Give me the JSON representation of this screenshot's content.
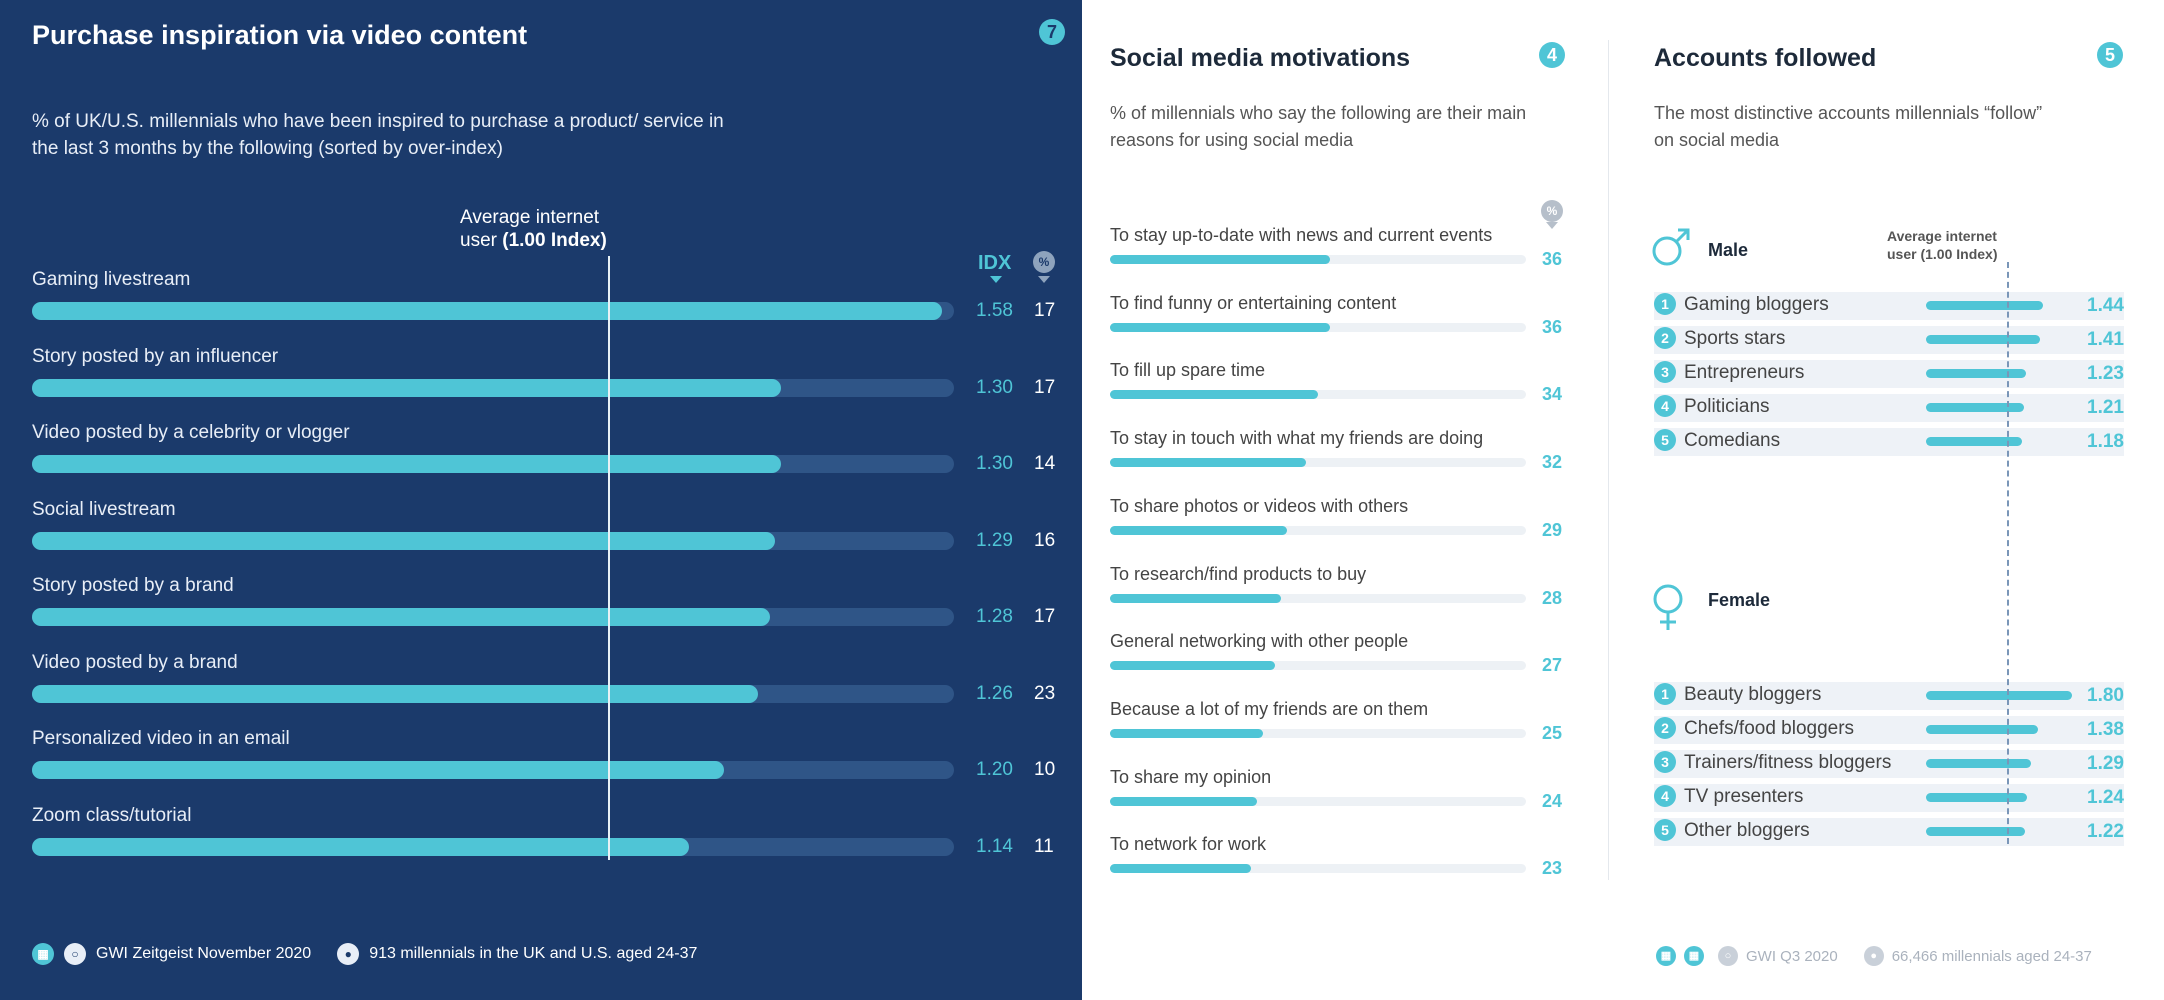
{
  "left": {
    "badge": "7",
    "title": "Purchase inspiration via video content",
    "subtitle": "% of UK/U.S. millennials who have been inspired to purchase a product/ service in the last 3 months by the following (sorted by over-index)",
    "avg_label_line1": "Average internet",
    "avg_label_line2_prefix": "user ",
    "avg_label_line2_bold": "(1.00 Index)",
    "idx_header": "IDX",
    "pct_header": "%",
    "footer": {
      "source": "GWI Zeitgeist November 2020",
      "sample": "913 millennials in the UK and U.S. aged 24-37"
    }
  },
  "middle": {
    "badge": "4",
    "title": "Social media motivations",
    "subtitle": "% of millennials who say the following are their main reasons for using social media",
    "pct_header": "%"
  },
  "right": {
    "badge": "5",
    "title": "Accounts followed",
    "subtitle": "The most distinctive accounts millennials “follow” on social media",
    "avg_label_line1": "Average internet",
    "avg_label_line2": "user (1.00 Index)",
    "male_label": "Male",
    "female_label": "Female",
    "footer": {
      "source": "GWI Q3 2020",
      "sample": "66,466 millennials aged 24-37"
    }
  },
  "colors": {
    "left_bg": "#1b3a6b",
    "accent": "#4fc5d6",
    "track_dark": "#2f5587",
    "track_light": "#edf1f5"
  },
  "chart_data": [
    {
      "type": "bar",
      "title": "Purchase inspiration via video content",
      "categories": [
        "Gaming livestream",
        "Story posted by an influencer",
        "Video posted by a celebrity or vlogger",
        "Social livestream",
        "Story posted by a brand",
        "Video posted by a brand",
        "Personalized video in an email",
        "Zoom class/tutorial"
      ],
      "series": [
        {
          "name": "IDX",
          "values": [
            1.58,
            1.3,
            1.3,
            1.29,
            1.28,
            1.26,
            1.2,
            1.14
          ]
        },
        {
          "name": "%",
          "values": [
            17,
            17,
            14,
            16,
            17,
            23,
            10,
            11
          ]
        }
      ],
      "reference_line": 1.0,
      "xlim": [
        0,
        1.6
      ]
    },
    {
      "type": "bar",
      "title": "Social media motivations",
      "categories": [
        "To stay up-to-date with news and current events",
        "To find funny or entertaining content",
        "To fill up spare time",
        "To stay in touch with what my friends are doing",
        "To share photos or videos with others",
        "To research/find products to buy",
        "General networking with other people",
        "Because a lot of my friends are on them",
        "To share my opinion",
        "To network for work"
      ],
      "values": [
        36,
        36,
        34,
        32,
        29,
        28,
        27,
        25,
        24,
        23
      ],
      "xlim": [
        0,
        68
      ]
    },
    {
      "type": "bar",
      "title": "Accounts followed",
      "groups": [
        {
          "name": "Male",
          "categories": [
            "Gaming bloggers",
            "Sports stars",
            "Entrepreneurs",
            "Politicians",
            "Comedians"
          ],
          "values": [
            1.44,
            1.41,
            1.23,
            1.21,
            1.18
          ]
        },
        {
          "name": "Female",
          "categories": [
            "Beauty bloggers",
            "Chefs/food bloggers",
            "Trainers/fitness bloggers",
            "TV presenters",
            "Other bloggers"
          ],
          "values": [
            1.8,
            1.38,
            1.29,
            1.24,
            1.22
          ]
        }
      ],
      "reference_line": 1.0,
      "xlim": [
        0,
        1.8
      ]
    }
  ]
}
